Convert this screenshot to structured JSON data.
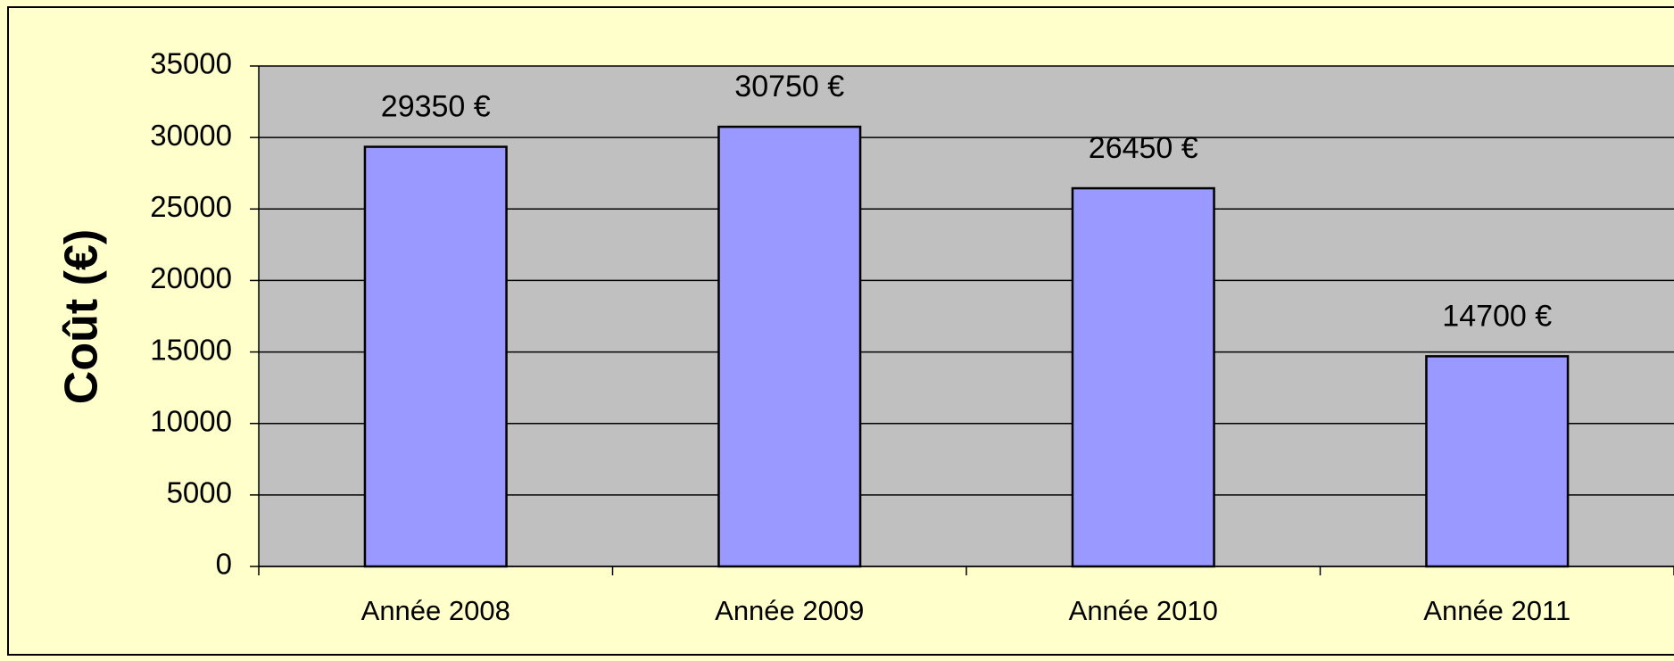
{
  "chart_data": {
    "type": "bar",
    "ylabel": "Coût (€)",
    "categories": [
      "Année 2008",
      "Année 2009",
      "Année 2010",
      "Année 2011"
    ],
    "values": [
      29350,
      30750,
      26450,
      14700
    ],
    "value_labels": [
      "29350 €",
      "30750 €",
      "26450 €",
      "14700 €"
    ],
    "color": "#9999ff",
    "ylim": [
      0,
      35000
    ],
    "yticks": [
      0,
      5000,
      10000,
      15000,
      20000,
      25000,
      30000,
      35000
    ],
    "grid": true
  }
}
